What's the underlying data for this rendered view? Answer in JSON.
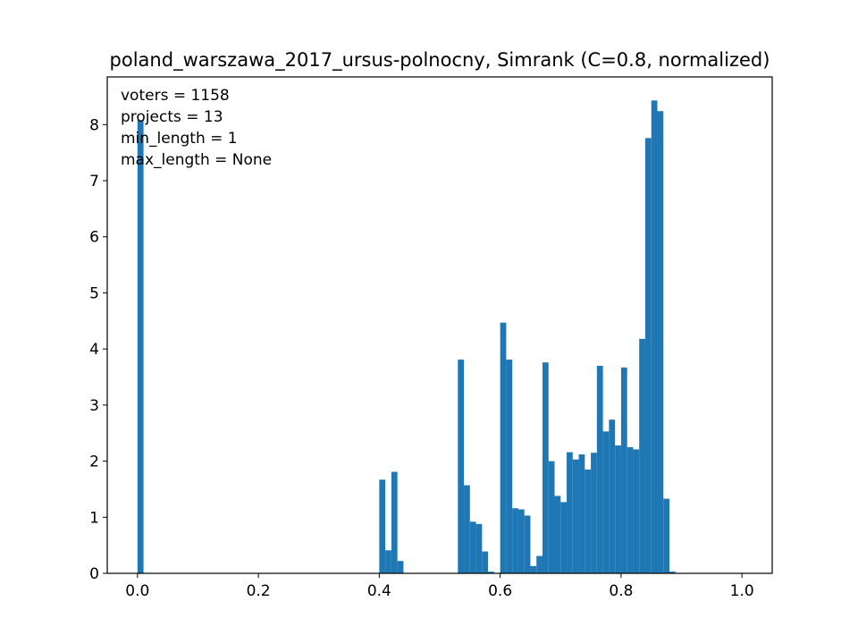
{
  "chart_data": {
    "type": "bar",
    "title": "poland_warszawa_2017_ursus-polnocny, Simrank (C=0.8, normalized)",
    "xlabel": "",
    "ylabel": "",
    "xlim": [
      -0.05,
      1.05
    ],
    "ylim": [
      0,
      8.85
    ],
    "xticks": [
      0.0,
      0.2,
      0.4,
      0.6,
      0.8,
      1.0
    ],
    "xtick_labels": [
      "0.0",
      "0.2",
      "0.4",
      "0.6",
      "0.8",
      "1.0"
    ],
    "yticks": [
      0,
      1,
      2,
      3,
      4,
      5,
      6,
      7,
      8
    ],
    "ytick_labels": [
      "0",
      "1",
      "2",
      "3",
      "4",
      "5",
      "6",
      "7",
      "8"
    ],
    "bin_width": 0.01,
    "bins": [
      {
        "x": 0.0,
        "value": 8.08
      },
      {
        "x": 0.4,
        "value": 1.67
      },
      {
        "x": 0.41,
        "value": 0.41
      },
      {
        "x": 0.42,
        "value": 1.81
      },
      {
        "x": 0.43,
        "value": 0.22
      },
      {
        "x": 0.53,
        "value": 3.81
      },
      {
        "x": 0.54,
        "value": 1.57
      },
      {
        "x": 0.55,
        "value": 0.92
      },
      {
        "x": 0.56,
        "value": 0.88
      },
      {
        "x": 0.57,
        "value": 0.39
      },
      {
        "x": 0.58,
        "value": 0.03
      },
      {
        "x": 0.6,
        "value": 4.47
      },
      {
        "x": 0.61,
        "value": 3.81
      },
      {
        "x": 0.62,
        "value": 1.16
      },
      {
        "x": 0.63,
        "value": 1.14
      },
      {
        "x": 0.64,
        "value": 1.03
      },
      {
        "x": 0.65,
        "value": 0.13
      },
      {
        "x": 0.66,
        "value": 0.31
      },
      {
        "x": 0.67,
        "value": 3.76
      },
      {
        "x": 0.68,
        "value": 2.0
      },
      {
        "x": 0.69,
        "value": 1.38
      },
      {
        "x": 0.7,
        "value": 1.27
      },
      {
        "x": 0.71,
        "value": 2.16
      },
      {
        "x": 0.72,
        "value": 2.03
      },
      {
        "x": 0.73,
        "value": 2.12
      },
      {
        "x": 0.74,
        "value": 1.85
      },
      {
        "x": 0.75,
        "value": 2.15
      },
      {
        "x": 0.76,
        "value": 3.7
      },
      {
        "x": 0.77,
        "value": 2.53
      },
      {
        "x": 0.78,
        "value": 2.74
      },
      {
        "x": 0.79,
        "value": 2.28
      },
      {
        "x": 0.8,
        "value": 3.67
      },
      {
        "x": 0.81,
        "value": 2.25
      },
      {
        "x": 0.82,
        "value": 2.21
      },
      {
        "x": 0.83,
        "value": 4.18
      },
      {
        "x": 0.84,
        "value": 7.76
      },
      {
        "x": 0.85,
        "value": 8.43
      },
      {
        "x": 0.86,
        "value": 8.24
      },
      {
        "x": 0.87,
        "value": 1.33
      },
      {
        "x": 0.88,
        "value": 0.03
      }
    ],
    "bar_color": "#1f77b4",
    "annotations": [
      "voters = 1158",
      "projects = 13",
      "min_length = 1",
      "max_length = None"
    ],
    "grid": false,
    "legend": "none"
  }
}
